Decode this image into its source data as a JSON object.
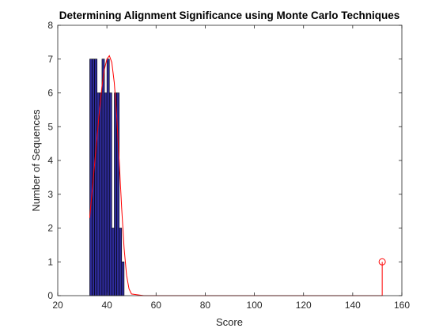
{
  "chart_data": {
    "type": "bar",
    "title": "Determining Alignment Significance using Monte Carlo Techniques",
    "xlabel": "Score",
    "ylabel": "Number of Sequences",
    "xlim": [
      20,
      160
    ],
    "ylim": [
      0,
      8
    ],
    "xticks": [
      20,
      40,
      60,
      80,
      100,
      120,
      140,
      160
    ],
    "yticks": [
      0,
      1,
      2,
      3,
      4,
      5,
      6,
      7,
      8
    ],
    "grid": false,
    "histogram": {
      "name": "",
      "bin_edges": [
        33,
        34,
        35,
        36,
        37,
        38,
        39,
        40,
        41,
        42,
        43,
        44,
        45,
        46,
        47
      ],
      "counts": [
        7,
        7,
        7,
        6,
        6,
        7,
        6,
        7,
        6,
        2,
        6,
        6,
        2,
        1
      ],
      "color": "#2e2b99",
      "edge_color": "#000000"
    },
    "fit_curve": {
      "name": "",
      "type": "line",
      "color": "#ff0000",
      "x": [
        33,
        34,
        35,
        36,
        37,
        38,
        39,
        40,
        41,
        42,
        43,
        44,
        45,
        46,
        47,
        48,
        49,
        50,
        55,
        60,
        80,
        100,
        120,
        140,
        152
      ],
      "y": [
        2.3,
        3.1,
        3.9,
        4.7,
        5.5,
        6.2,
        6.7,
        7.0,
        7.1,
        6.9,
        6.3,
        5.3,
        4.0,
        2.6,
        1.4,
        0.6,
        0.2,
        0.05,
        0,
        0,
        0,
        0,
        0,
        0,
        0
      ]
    },
    "stem": {
      "name": "",
      "type": "stem",
      "color": "#ff0000",
      "x": 152,
      "y": 1
    }
  }
}
